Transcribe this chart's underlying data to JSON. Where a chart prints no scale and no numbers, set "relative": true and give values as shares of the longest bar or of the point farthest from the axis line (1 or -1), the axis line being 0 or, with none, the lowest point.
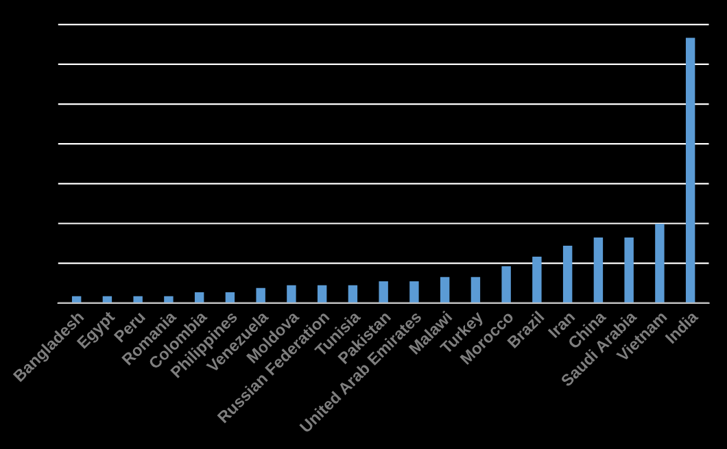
{
  "chart_data": {
    "type": "bar",
    "relative": true,
    "grid": "y",
    "color": "#5b9bd5",
    "categories": [
      "Bangladesh",
      "Egypt",
      "Peru",
      "Romania",
      "Colombia",
      "Philippines",
      "Venezuela",
      "Moldova",
      "Russian Federation",
      "Tunisia",
      "Pakistan",
      "United Arab Emirates",
      "Malawi",
      "Turkey",
      "Morocco",
      "Brazil",
      "Iran",
      "China",
      "Saudi Arabia",
      "Vietnam",
      "India"
    ],
    "values": [
      0.026,
      0.026,
      0.026,
      0.026,
      0.041,
      0.041,
      0.057,
      0.067,
      0.067,
      0.067,
      0.082,
      0.082,
      0.098,
      0.098,
      0.139,
      0.175,
      0.216,
      0.247,
      0.247,
      0.299,
      1
    ]
  }
}
